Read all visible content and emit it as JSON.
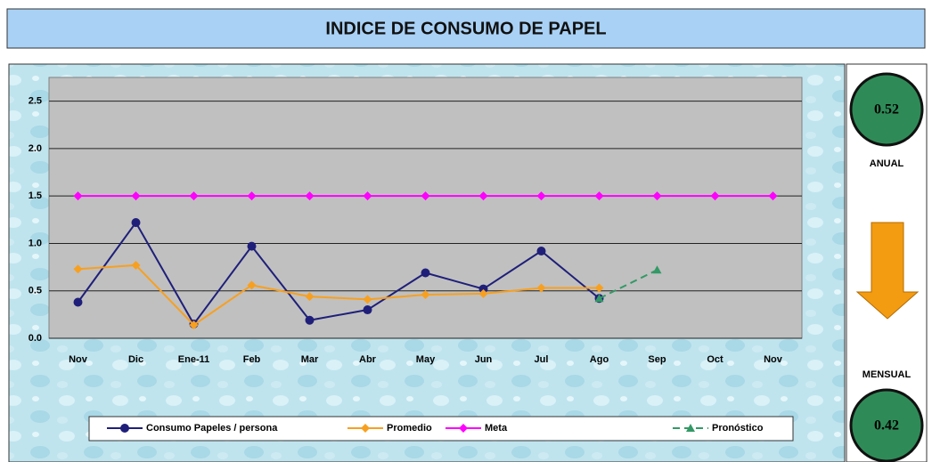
{
  "chart_data": {
    "type": "line",
    "title": "INDICE DE CONSUMO DE PAPEL",
    "categories": [
      "Nov",
      "Dic",
      "Ene-11",
      "Feb",
      "Mar",
      "Abr",
      "May",
      "Jun",
      "Jul",
      "Ago",
      "Sep",
      "Oct",
      "Nov"
    ],
    "series": [
      {
        "name": "Consumo Papeles / persona",
        "color": "#1f1f7a",
        "marker": "circle",
        "dash": false,
        "values": [
          0.38,
          1.22,
          0.15,
          0.97,
          0.19,
          0.3,
          0.69,
          0.52,
          0.92,
          0.42,
          null,
          null,
          null
        ]
      },
      {
        "name": "Promedio",
        "color": "#f7a020",
        "marker": "diamond",
        "dash": false,
        "values": [
          0.73,
          0.77,
          0.14,
          0.56,
          0.44,
          0.41,
          0.46,
          0.47,
          0.53,
          0.53,
          null,
          null,
          null
        ]
      },
      {
        "name": "Meta",
        "color": "#ff00ff",
        "marker": "diamond",
        "dash": false,
        "values": [
          1.5,
          1.5,
          1.5,
          1.5,
          1.5,
          1.5,
          1.5,
          1.5,
          1.5,
          1.5,
          1.5,
          1.5,
          1.5
        ]
      },
      {
        "name": "Pronóstico",
        "color": "#339966",
        "marker": "triangle",
        "dash": true,
        "values": [
          null,
          null,
          null,
          null,
          null,
          null,
          null,
          null,
          null,
          0.42,
          0.72,
          null,
          null
        ]
      }
    ],
    "ylim": [
      0,
      2.75
    ],
    "yticks": [
      {
        "value": 0,
        "label": "0.0"
      },
      {
        "value": 0.5,
        "label": "0.5"
      },
      {
        "value": 1,
        "label": "1.0"
      },
      {
        "value": 1.5,
        "label": "1.5"
      },
      {
        "value": 2,
        "label": "2.0"
      },
      {
        "value": 2.5,
        "label": "2.5"
      }
    ],
    "grid": true,
    "legend": "bottom"
  },
  "kpi": {
    "annual_value": 0.52,
    "annual_label": "ANUAL",
    "monthly_label": "MENSUAL",
    "monthly_value": 0.42
  }
}
